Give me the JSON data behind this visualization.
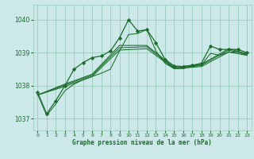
{
  "bg_color": "#cce8e8",
  "grid_color": "#99ccbb",
  "line_color": "#1a6b2a",
  "marker_color": "#1a6b2a",
  "xlabel": "Graphe pression niveau de la mer (hPa)",
  "ylim": [
    1036.65,
    1040.45
  ],
  "xlim": [
    -0.5,
    23.5
  ],
  "yticks": [
    1037,
    1038,
    1039,
    1040
  ],
  "xticks": [
    0,
    1,
    2,
    3,
    4,
    5,
    6,
    7,
    8,
    9,
    10,
    11,
    12,
    13,
    14,
    15,
    16,
    17,
    18,
    19,
    20,
    21,
    22,
    23
  ],
  "series": [
    {
      "x": [
        0,
        1,
        2,
        3,
        4,
        5,
        6,
        7,
        8,
        9,
        10,
        11,
        12,
        13,
        14,
        15,
        16,
        17,
        18,
        19,
        20,
        21,
        22,
        23
      ],
      "y": [
        1037.8,
        1037.15,
        1037.55,
        1038.0,
        1038.5,
        1038.7,
        1038.85,
        1038.9,
        1039.05,
        1039.45,
        1040.0,
        1039.65,
        1039.7,
        1039.3,
        1038.8,
        1038.6,
        1038.58,
        1038.62,
        1038.68,
        1039.2,
        1039.1,
        1039.1,
        1039.1,
        1039.0
      ],
      "marker": true
    },
    {
      "x": [
        0,
        1,
        2,
        3,
        4,
        5,
        6,
        7,
        8,
        9,
        10,
        11,
        12,
        13,
        14,
        15,
        16,
        17,
        18,
        19,
        20,
        21,
        22,
        23
      ],
      "y": [
        1037.75,
        1037.1,
        1037.45,
        1037.85,
        1038.05,
        1038.18,
        1038.28,
        1038.38,
        1038.5,
        1039.05,
        1039.55,
        1039.58,
        1039.7,
        1039.05,
        1038.68,
        1038.52,
        1038.52,
        1038.58,
        1038.62,
        1038.98,
        1038.92,
        1039.02,
        1039.02,
        1038.92
      ],
      "marker": false
    },
    {
      "x": [
        0,
        3,
        6,
        9,
        12,
        15,
        18,
        21,
        23
      ],
      "y": [
        1037.72,
        1037.98,
        1038.28,
        1039.08,
        1039.12,
        1038.52,
        1038.58,
        1039.02,
        1038.92
      ],
      "marker": false
    },
    {
      "x": [
        0,
        3,
        6,
        9,
        12,
        15,
        18,
        21,
        23
      ],
      "y": [
        1037.72,
        1038.02,
        1038.32,
        1039.15,
        1039.18,
        1038.54,
        1038.62,
        1039.08,
        1038.95
      ],
      "marker": false
    },
    {
      "x": [
        0,
        3,
        6,
        9,
        12,
        15,
        18,
        21,
        23
      ],
      "y": [
        1037.72,
        1038.05,
        1038.35,
        1039.22,
        1039.22,
        1038.56,
        1038.65,
        1039.12,
        1038.97
      ],
      "marker": false
    }
  ]
}
